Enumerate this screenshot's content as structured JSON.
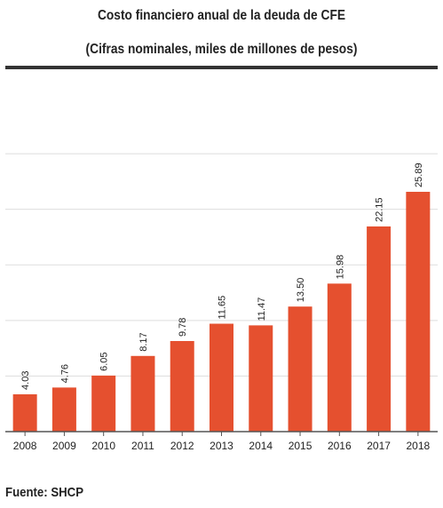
{
  "header": {
    "title": "Costo financiero anual de la deuda de CFE",
    "subtitle": "(Cifras nominales, miles de millones de pesos)"
  },
  "footer": {
    "source": "Fuente: SHCP"
  },
  "colors": {
    "bar": "#e5502f",
    "grid": "#dddddd",
    "axis": "#555555",
    "text": "#222222"
  },
  "chart_data": {
    "type": "bar",
    "title": "Costo financiero anual de la deuda de CFE",
    "subtitle": "(Cifras nominales, miles de millones de pesos)",
    "categories": [
      "2008",
      "2009",
      "2010",
      "2011",
      "2012",
      "2013",
      "2014",
      "2015",
      "2016",
      "2017",
      "2018"
    ],
    "values": [
      4.03,
      4.76,
      6.05,
      8.17,
      9.78,
      11.65,
      11.47,
      13.5,
      15.98,
      22.15,
      25.89
    ],
    "value_labels": [
      "4.03",
      "4.76",
      "6.05",
      "8.17",
      "9.78",
      "11.65",
      "11.47",
      "13.50",
      "15.98",
      "22.15",
      "25.89"
    ],
    "xlabel": "",
    "ylabel": "",
    "ylim": [
      0,
      30
    ],
    "grid": true,
    "y_tick_labels_shown": false,
    "data_labels": "rotated, above bars"
  }
}
